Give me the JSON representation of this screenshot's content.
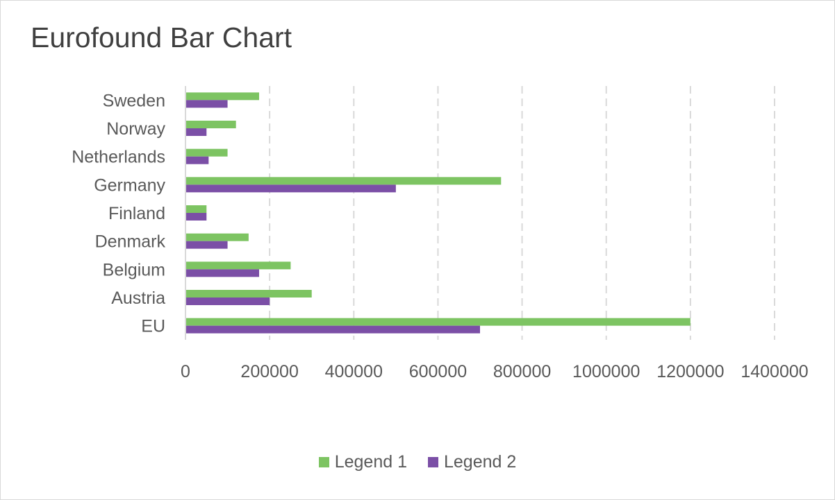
{
  "chart_data": {
    "type": "bar",
    "orientation": "horizontal",
    "title": "Eurofound Bar Chart",
    "categories": [
      "EU",
      "Austria",
      "Belgium",
      "Denmark",
      "Finland",
      "Germany",
      "Netherlands",
      "Norway",
      "Sweden"
    ],
    "series": [
      {
        "name": "Legend 1",
        "color": "#7dc462",
        "values": [
          1200000,
          300000,
          250000,
          150000,
          50000,
          750000,
          100000,
          120000,
          175000
        ]
      },
      {
        "name": "Legend 2",
        "color": "#7b4fa6",
        "values": [
          700000,
          200000,
          175000,
          100000,
          50000,
          500000,
          55000,
          50000,
          100000
        ]
      }
    ],
    "xlim": [
      0,
      1400000
    ],
    "xticks": [
      0,
      200000,
      400000,
      600000,
      800000,
      1000000,
      1200000,
      1400000
    ],
    "grid": "vertical-dashed",
    "legend_position": "bottom"
  }
}
